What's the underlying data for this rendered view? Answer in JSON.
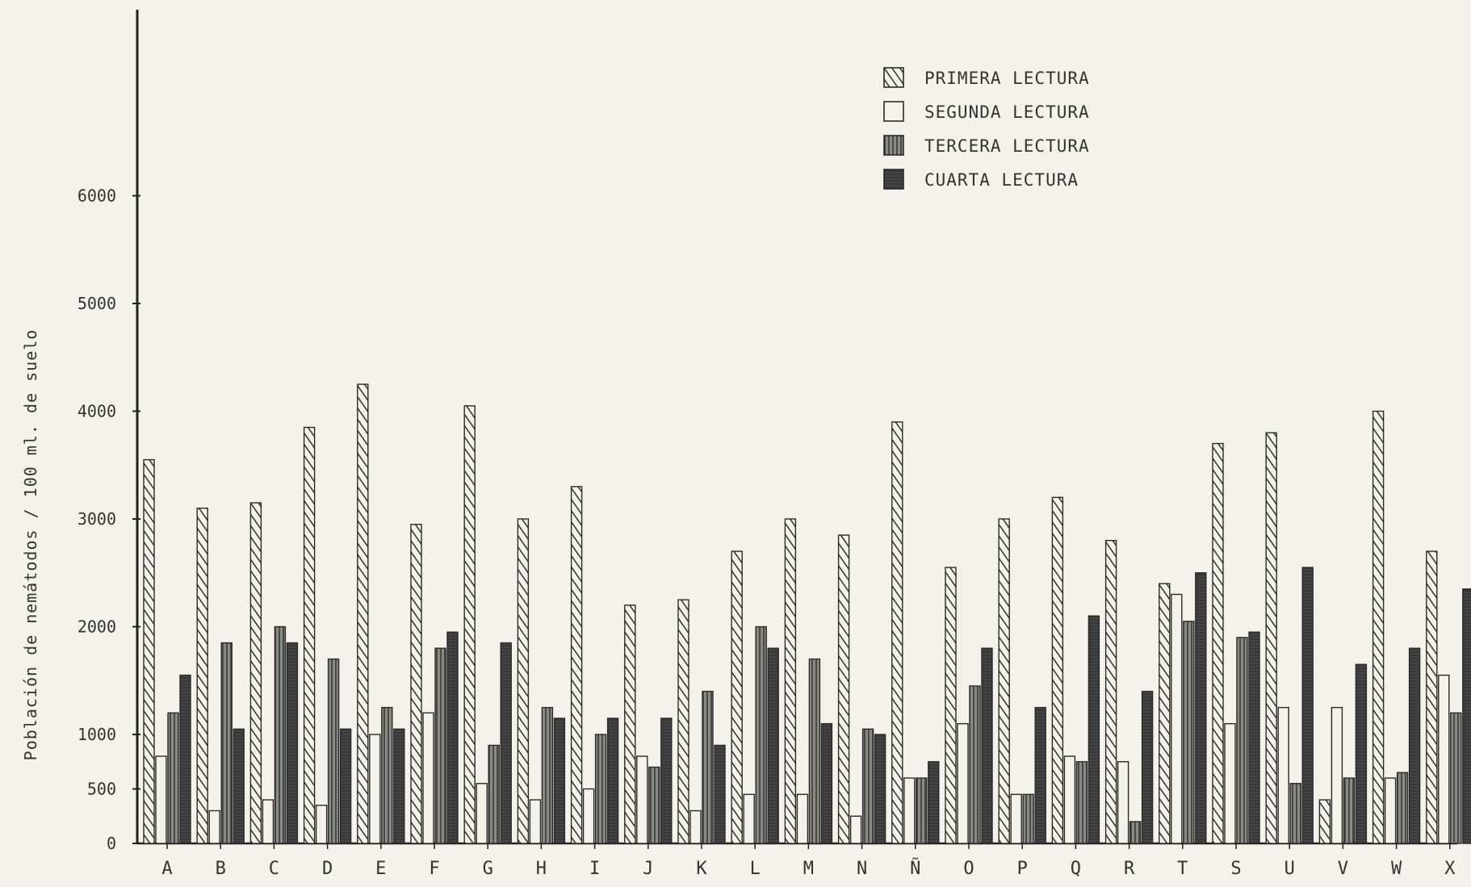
{
  "chart_data": {
    "type": "bar",
    "title": "",
    "xlabel": "",
    "ylabel": "Población de nemátodos / 100 ml. de suelo",
    "ylim": [
      0,
      7000
    ],
    "yticks": [
      0,
      500,
      1000,
      2000,
      3000,
      4000,
      5000,
      6000
    ],
    "ytick_labels": [
      "0",
      "500",
      "1000",
      "2000",
      "3000",
      "4000",
      "5000",
      "6000"
    ],
    "grid": false,
    "legend_position": "top-right",
    "categories": [
      "A",
      "B",
      "C",
      "D",
      "E",
      "F",
      "G",
      "H",
      "I",
      "J",
      "K",
      "L",
      "M",
      "N",
      "Ñ",
      "O",
      "P",
      "Q",
      "R",
      "T",
      "S",
      "U",
      "V",
      "W",
      "X"
    ],
    "series": [
      {
        "name": "PRIMERA LECTURA",
        "pattern": "hatched",
        "values": [
          3550,
          3100,
          3150,
          3850,
          4250,
          2950,
          4050,
          3000,
          3300,
          2200,
          2250,
          2700,
          3000,
          2850,
          3900,
          2550,
          3000,
          3200,
          2800,
          2400,
          3700,
          3800,
          400,
          4000,
          2700
        ]
      },
      {
        "name": "SEGUNDA LECTURA",
        "pattern": "empty",
        "values": [
          800,
          300,
          400,
          350,
          1000,
          1200,
          550,
          400,
          500,
          800,
          300,
          450,
          450,
          250,
          600,
          1100,
          450,
          800,
          750,
          2300,
          1100,
          1250,
          1250,
          600,
          1550
        ]
      },
      {
        "name": "TERCERA LECTURA",
        "pattern": "lined",
        "values": [
          1200,
          1850,
          2000,
          1700,
          1250,
          1800,
          900,
          1250,
          1000,
          700,
          1400,
          2000,
          1700,
          1050,
          600,
          1450,
          450,
          750,
          200,
          2050,
          1900,
          550,
          600,
          650,
          1200
        ]
      },
      {
        "name": "CUARTA LECTURA",
        "pattern": "solid",
        "values": [
          1550,
          1050,
          1850,
          1050,
          1050,
          1950,
          1850,
          1150,
          1150,
          1150,
          900,
          1800,
          1100,
          1000,
          750,
          1800,
          1250,
          2100,
          1400,
          2500,
          1950,
          2550,
          1650,
          1800,
          2350
        ]
      }
    ]
  }
}
